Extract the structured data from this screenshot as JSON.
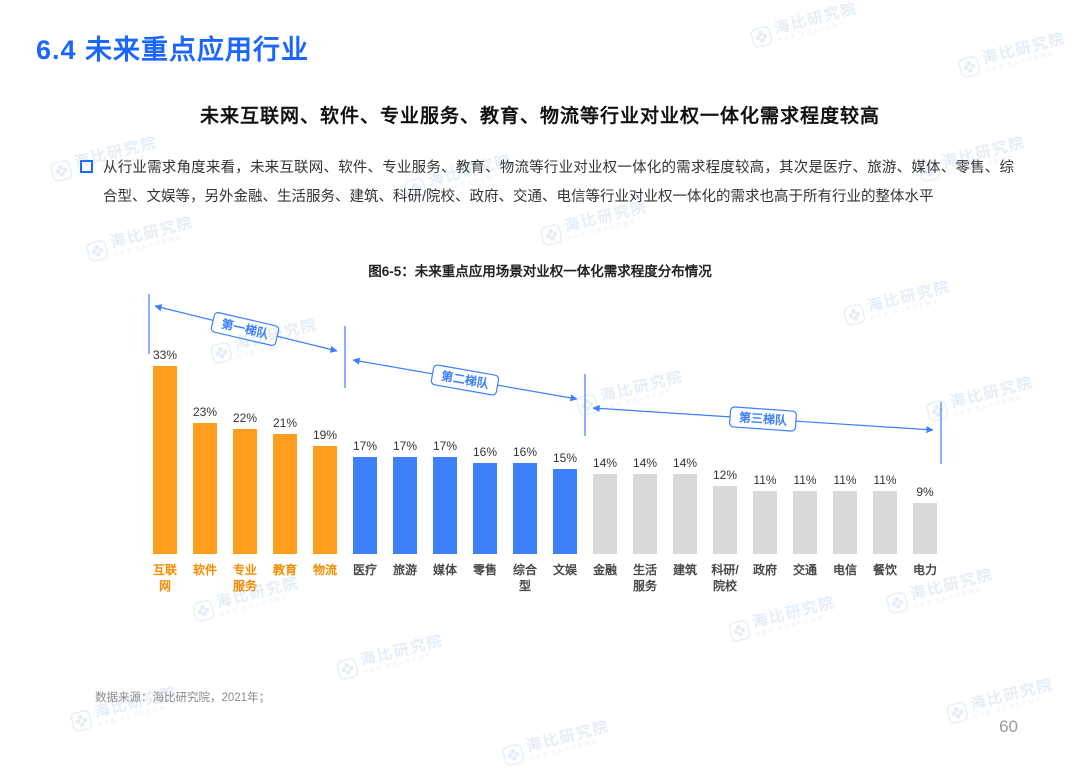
{
  "page": {
    "section_title": "6.4 未来重点应用行业",
    "subtitle": "未来互联网、软件、专业服务、教育、物流等行业对业权一体化需求程度较高",
    "body_text": "从行业需求角度来看，未来互联网、软件、专业服务、教育、物流等行业对业权一体化的需求程度较高，其次是医疗、旅游、媒体、零售、综合型、文娱等，另外金融、生活服务、建筑、科研/院校、政府、交通、电信等行业对业权一体化的需求也高于所有行业的整体水平",
    "source_note": "数据来源：海比研究院，2021年；",
    "page_number": "60"
  },
  "watermark": {
    "text": "海比研究院",
    "subtext": "HAB ACADEMY"
  },
  "colors": {
    "accent_blue": "#1A66FF",
    "tier1_orange": "#FF9D1C",
    "tier2_blue": "#3E80F8",
    "tier3_gray": "#D9D9D9",
    "annotation_blue": "#3D7FFB"
  },
  "chart_data": {
    "type": "bar",
    "title": "图6-5：未来重点应用场景对业权一体化需求程度分布情况",
    "categories": [
      "互联网",
      "软件",
      "专业服务",
      "教育",
      "物流",
      "医疗",
      "旅游",
      "媒体",
      "零售",
      "综合型",
      "文娱",
      "金融",
      "生活服务",
      "建筑",
      "科研/院校",
      "政府",
      "交通",
      "电信",
      "餐饮",
      "电力"
    ],
    "values": [
      33,
      23,
      22,
      21,
      19,
      17,
      17,
      17,
      16,
      16,
      15,
      14,
      14,
      14,
      12,
      11,
      11,
      11,
      11,
      9
    ],
    "unit": "%",
    "value_labels": true,
    "grid": false,
    "ylim": [
      0,
      35
    ],
    "xlabel": "",
    "ylabel": "",
    "tiers": [
      {
        "label": "第一梯队",
        "start": 0,
        "end": 4,
        "color": "#FF9D1C",
        "label_color": "#F78B00"
      },
      {
        "label": "第二梯队",
        "start": 5,
        "end": 10,
        "color": "#3E80F8",
        "label_color": "#4a4a4a"
      },
      {
        "label": "第三梯队",
        "start": 11,
        "end": 19,
        "color": "#D9D9D9",
        "label_color": "#4a4a4a"
      }
    ]
  }
}
